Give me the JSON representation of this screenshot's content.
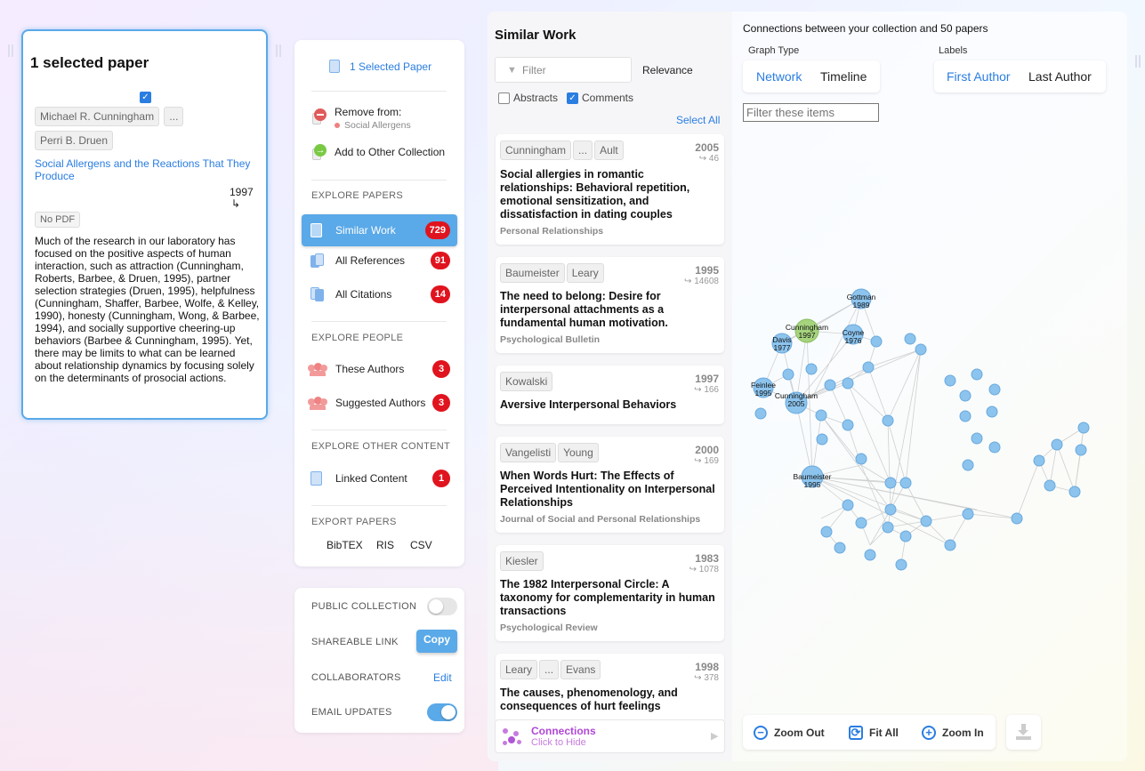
{
  "selected": {
    "heading": "1 selected paper",
    "authors": [
      "Michael R. Cunningham",
      "...",
      "Perri B. Druen"
    ],
    "title": "Social Allergens and the Reactions That They Produce",
    "year": "1997",
    "year_arrow": "↳",
    "pdf": "No PDF",
    "abstract": "Much of the research in our laboratory has focused on the positive aspects of human interaction, such as attraction (Cunningham, Roberts, Barbee, & Druen, 1995), partner selection strategies (Druen, 1995), helpfulness (Cunningham, Shaffer, Barbee, Wolfe, & Kelley, 1990), honesty (Cunningham, Wong, & Barbee, 1994), and socially supportive cheering-up behaviors (Barbee & Cunningham, 1995). Yet, there may be limits to what can be learned about relationship dynamics by focusing solely on the determinants of prosocial actions."
  },
  "menu": {
    "selected_paper": "1 Selected Paper",
    "remove_from": "Remove from:",
    "collection": "Social Allergens",
    "add_other": "Add to Other Collection",
    "explore_papers": "EXPLORE PAPERS",
    "similar_work": "Similar Work",
    "similar_count": "729",
    "all_references": "All References",
    "references_count": "91",
    "all_citations": "All Citations",
    "citations_count": "14",
    "explore_people": "EXPLORE PEOPLE",
    "these_authors": "These Authors",
    "these_count": "3",
    "suggested_authors": "Suggested Authors",
    "suggested_count": "3",
    "explore_other": "EXPLORE OTHER CONTENT",
    "linked_content": "Linked Content",
    "linked_count": "1",
    "export_papers": "EXPORT PAPERS",
    "bibtex": "BibTEX",
    "ris": "RIS",
    "csv": "CSV"
  },
  "settings": {
    "public_collection": "PUBLIC COLLECTION",
    "shareable_link": "SHAREABLE LINK",
    "copy": "Copy",
    "collaborators": "COLLABORATORS",
    "edit": "Edit",
    "email_updates": "EMAIL UPDATES",
    "public_on": false,
    "email_on": true
  },
  "list": {
    "title": "Similar Work",
    "filter_placeholder": "Filter",
    "sort": "Relevance",
    "abstracts": "Abstracts",
    "comments": "Comments",
    "select_all": "Select All",
    "connections": "Connections",
    "connections_sub": "Click to Hide",
    "papers": [
      {
        "authors": [
          "Cunningham",
          "...",
          "Ault"
        ],
        "year": "2005",
        "cites": "↪ 46",
        "title": "Social allergies in romantic relationships: Behavioral repetition, emotional sensitization, and dissatisfaction in dating couples",
        "journal": "Personal Relationships"
      },
      {
        "authors": [
          "Baumeister",
          "Leary"
        ],
        "year": "1995",
        "cites": "↪ 14608",
        "title": "The need to belong: Desire for interpersonal attachments as a fundamental human motivation.",
        "journal": "Psychological Bulletin"
      },
      {
        "authors": [
          "Kowalski"
        ],
        "year": "1997",
        "cites": "↪ 166",
        "title": "Aversive Interpersonal Behaviors",
        "journal": ""
      },
      {
        "authors": [
          "Vangelisti",
          "Young"
        ],
        "year": "2000",
        "cites": "↪ 169",
        "title": "When Words Hurt: The Effects of Perceived Intentionality on Interpersonal Relationships",
        "journal": "Journal of Social and Personal Relationships"
      },
      {
        "authors": [
          "Kiesler"
        ],
        "year": "1983",
        "cites": "↪ 1078",
        "title": "The 1982 Interpersonal Circle: A taxonomy for complementarity in human transactions",
        "journal": "Psychological Review"
      },
      {
        "authors": [
          "Leary",
          "...",
          "Evans"
        ],
        "year": "1998",
        "cites": "↪ 378",
        "title": "The causes, phenomenology, and consequences of hurt feelings",
        "journal": ""
      }
    ]
  },
  "graph": {
    "caption": "Connections between your collection and 50 papers",
    "graph_type_label": "Graph Type",
    "network": "Network",
    "timeline": "Timeline",
    "labels_label": "Labels",
    "first_author": "First Author",
    "last_author": "Last Author",
    "filter_placeholder": "Filter these items",
    "zoom_out": "Zoom Out",
    "fit_all": "Fit All",
    "zoom_in": "Zoom In",
    "labeled_nodes": [
      {
        "name": "Gottman",
        "year": "1989"
      },
      {
        "name": "Cunningham",
        "year": "1997"
      },
      {
        "name": "Davis",
        "year": "1977"
      },
      {
        "name": "Coyne",
        "year": "1976"
      },
      {
        "name": "Feinlee",
        "year": "1995"
      },
      {
        "name": "Cunningham",
        "year": "2005"
      },
      {
        "name": "Baumeister",
        "year": "1995"
      }
    ]
  },
  "colors": {
    "accent": "#2a7de1",
    "badge": "#e0141e",
    "node": "#8cc4ee",
    "node_selected": "#9fd47a"
  }
}
